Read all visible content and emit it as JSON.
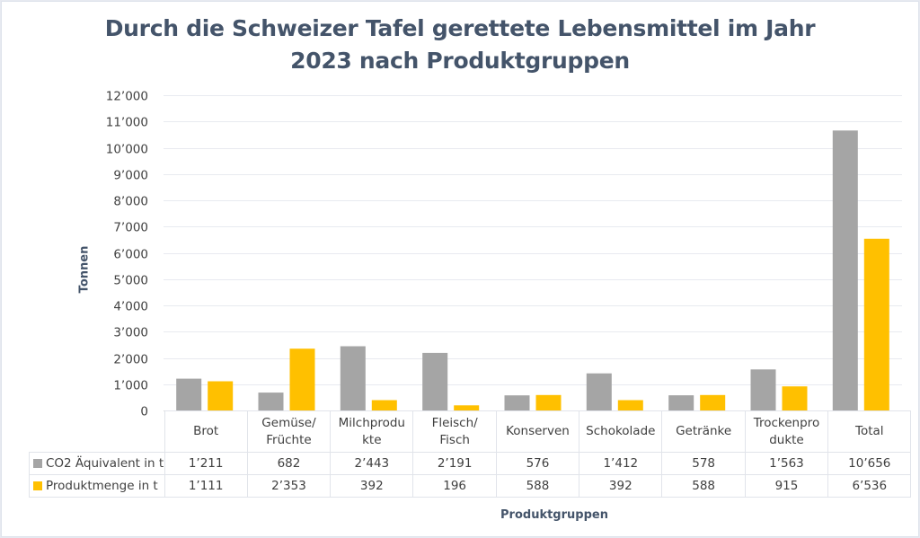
{
  "chart_data": {
    "type": "bar",
    "title": "Durch die Schweizer Tafel gerettete Lebensmittel im Jahr 2023 nach Produktgruppen",
    "title_lines": [
      "Durch die Schweizer Tafel gerettete Lebensmittel im Jahr",
      "2023 nach Produktgruppen"
    ],
    "xlabel": "Produktgruppen",
    "ylabel": "Tonnen",
    "ylim": [
      0,
      12000
    ],
    "yticks": [
      0,
      1000,
      2000,
      3000,
      4000,
      5000,
      6000,
      7000,
      8000,
      9000,
      10000,
      11000,
      12000
    ],
    "ytick_labels": [
      "0",
      "1’000",
      "2’000",
      "3’000",
      "4’000",
      "5’000",
      "6’000",
      "7’000",
      "8’000",
      "9’000",
      "10’000",
      "11’000",
      "12’000"
    ],
    "grid": true,
    "legend": "data-table",
    "categories": [
      "Brot",
      "Gemüse/ Früchte",
      "Milchprodukte",
      "Fleisch/ Fisch",
      "Konserven",
      "Schokolade",
      "Getränke",
      "Trockenprodukte",
      "Total"
    ],
    "category_lines": [
      [
        "Brot"
      ],
      [
        "Gemüse/",
        "Früchte"
      ],
      [
        "Milchprodu",
        "kte"
      ],
      [
        "Fleisch/",
        "Fisch"
      ],
      [
        "Konserven"
      ],
      [
        "Schokolade"
      ],
      [
        "Getränke"
      ],
      [
        "Trockenpro",
        "dukte"
      ],
      [
        "Total"
      ]
    ],
    "series": [
      {
        "name": "CO2 Äquivalent in t",
        "color": "#a5a5a5",
        "values": [
          1211,
          682,
          2443,
          2191,
          576,
          1412,
          578,
          1563,
          10656
        ],
        "labels": [
          "1’211",
          "682",
          "2’443",
          "2’191",
          "576",
          "1’412",
          "578",
          "1’563",
          "10’656"
        ]
      },
      {
        "name": "Produktmenge in t",
        "color": "#ffc000",
        "values": [
          1111,
          2353,
          392,
          196,
          588,
          392,
          588,
          915,
          6536
        ],
        "labels": [
          "1’111",
          "2’353",
          "392",
          "196",
          "588",
          "392",
          "588",
          "915",
          "6’536"
        ]
      }
    ]
  }
}
